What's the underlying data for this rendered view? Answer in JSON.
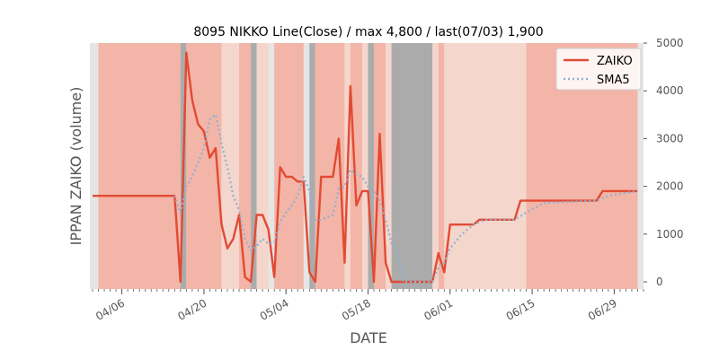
{
  "chart_data": {
    "type": "line",
    "title": "8095 NIKKO Line(Close) / max 4,800 / last(07/03) 1,900",
    "xlabel": "DATE",
    "ylabel": "IPPAN ZAIKO (volume)",
    "ylim": [
      0,
      5000
    ],
    "yticks": [
      0,
      1000,
      2000,
      3000,
      4000,
      5000
    ],
    "ytick_labels": [
      "0",
      "1000",
      "2000",
      "3000",
      "4000",
      "5000"
    ],
    "y_axis_side": "right",
    "xlim": [
      "04/01",
      "07/04"
    ],
    "xtick_labels": [
      "04/06",
      "04/20",
      "05/04",
      "05/18",
      "06/01",
      "06/15",
      "06/29"
    ],
    "xtick_dates": [
      "04/06",
      "04/20",
      "05/04",
      "05/18",
      "06/01",
      "06/15",
      "06/29"
    ],
    "legend_position": "top-right",
    "grid": false,
    "series": [
      {
        "name": "ZAIKO",
        "color": "#e24a33",
        "style": "solid",
        "points": [
          [
            "04/01",
            1800
          ],
          [
            "04/02",
            1800
          ],
          [
            "04/03",
            1800
          ],
          [
            "04/06",
            1800
          ],
          [
            "04/07",
            1800
          ],
          [
            "04/08",
            1800
          ],
          [
            "04/09",
            1800
          ],
          [
            "04/10",
            1800
          ],
          [
            "04/13",
            1800
          ],
          [
            "04/14",
            1800
          ],
          [
            "04/15",
            1800
          ],
          [
            "04/16",
            0
          ],
          [
            "04/17",
            4800
          ],
          [
            "04/18",
            3800
          ],
          [
            "04/19",
            3300
          ],
          [
            "04/20",
            3150
          ],
          [
            "04/21",
            2600
          ],
          [
            "04/22",
            2800
          ],
          [
            "04/23",
            1200
          ],
          [
            "04/24",
            700
          ],
          [
            "04/25",
            900
          ],
          [
            "04/26",
            1400
          ],
          [
            "04/27",
            100
          ],
          [
            "04/28",
            0
          ],
          [
            "04/29",
            1400
          ],
          [
            "04/30",
            1400
          ],
          [
            "05/01",
            1100
          ],
          [
            "05/02",
            100
          ],
          [
            "05/03",
            2400
          ],
          [
            "05/04",
            2200
          ],
          [
            "05/05",
            2200
          ],
          [
            "05/06",
            2100
          ],
          [
            "05/07",
            2100
          ],
          [
            "05/08",
            200
          ],
          [
            "05/09",
            0
          ],
          [
            "05/10",
            2200
          ],
          [
            "05/11",
            2200
          ],
          [
            "05/12",
            2200
          ],
          [
            "05/13",
            3000
          ],
          [
            "05/14",
            400
          ],
          [
            "05/15",
            4100
          ],
          [
            "05/16",
            1600
          ],
          [
            "05/17",
            1900
          ],
          [
            "05/18",
            1900
          ],
          [
            "05/19",
            0
          ],
          [
            "05/20",
            3100
          ],
          [
            "05/21",
            400
          ],
          [
            "05/22",
            0
          ],
          [
            "05/26",
            0
          ],
          [
            "05/27",
            0
          ],
          [
            "05/28",
            0
          ],
          [
            "05/29",
            0
          ],
          [
            "05/30",
            600
          ],
          [
            "05/31",
            200
          ],
          [
            "06/01",
            1200
          ],
          [
            "06/05",
            1200
          ],
          [
            "06/06",
            1300
          ],
          [
            "06/12",
            1300
          ],
          [
            "06/13",
            1700
          ],
          [
            "06/26",
            1700
          ],
          [
            "06/27",
            1900
          ],
          [
            "07/03",
            1900
          ]
        ]
      },
      {
        "name": "SMA5",
        "color": "#8eb1d4",
        "style": "dotted",
        "points": [
          [
            "04/15",
            1800
          ],
          [
            "04/16",
            1440
          ],
          [
            "04/17",
            2000
          ],
          [
            "04/18",
            2200
          ],
          [
            "04/19",
            2500
          ],
          [
            "04/20",
            2800
          ],
          [
            "04/21",
            3400
          ],
          [
            "04/22",
            3500
          ],
          [
            "04/23",
            2900
          ],
          [
            "04/24",
            2400
          ],
          [
            "04/25",
            1800
          ],
          [
            "04/26",
            1500
          ],
          [
            "04/27",
            900
          ],
          [
            "04/28",
            650
          ],
          [
            "04/29",
            750
          ],
          [
            "04/30",
            900
          ],
          [
            "05/01",
            800
          ],
          [
            "05/02",
            820
          ],
          [
            "05/03",
            1250
          ],
          [
            "05/04",
            1450
          ],
          [
            "05/05",
            1600
          ],
          [
            "05/06",
            1800
          ],
          [
            "05/07",
            2200
          ],
          [
            "05/08",
            1900
          ],
          [
            "05/09",
            1300
          ],
          [
            "05/10",
            1300
          ],
          [
            "05/11",
            1350
          ],
          [
            "05/12",
            1400
          ],
          [
            "05/13",
            1950
          ],
          [
            "05/14",
            2000
          ],
          [
            "05/15",
            2350
          ],
          [
            "05/16",
            2250
          ],
          [
            "05/17",
            2200
          ],
          [
            "05/18",
            2000
          ],
          [
            "05/19",
            1900
          ],
          [
            "05/20",
            1700
          ],
          [
            "05/21",
            1300
          ],
          [
            "05/22",
            800
          ],
          [
            "05/23",
            700
          ],
          [
            "05/24",
            0
          ],
          [
            "05/29",
            0
          ],
          [
            "05/30",
            300
          ],
          [
            "05/31",
            400
          ],
          [
            "06/01",
            700
          ],
          [
            "06/03",
            1000
          ],
          [
            "06/05",
            1200
          ],
          [
            "06/07",
            1300
          ],
          [
            "06/12",
            1300
          ],
          [
            "06/14",
            1450
          ],
          [
            "06/17",
            1650
          ],
          [
            "06/26",
            1700
          ],
          [
            "06/28",
            1800
          ],
          [
            "07/03",
            1900
          ]
        ]
      }
    ]
  },
  "background_bands": {
    "color_light": "#f5d6cc",
    "color_mid": "#f3b5a7",
    "color_gray": "#ababab",
    "color_plot": "#e5e5e5",
    "bands": [
      [
        "04/02",
        "04/16",
        "mid"
      ],
      [
        "04/16",
        "04/17",
        "gray"
      ],
      [
        "04/17",
        "04/23",
        "mid"
      ],
      [
        "04/23",
        "04/26",
        "light"
      ],
      [
        "04/26",
        "04/28",
        "mid"
      ],
      [
        "04/28",
        "04/29",
        "gray"
      ],
      [
        "04/29",
        "05/01",
        "light"
      ],
      [
        "05/02",
        "05/07",
        "mid"
      ],
      [
        "05/08",
        "05/09",
        "gray"
      ],
      [
        "05/09",
        "05/14",
        "mid"
      ],
      [
        "05/14",
        "05/15",
        "light"
      ],
      [
        "05/15",
        "05/17",
        "mid"
      ],
      [
        "05/17",
        "05/18",
        "light"
      ],
      [
        "05/18",
        "05/19",
        "gray"
      ],
      [
        "05/19",
        "05/21",
        "mid"
      ],
      [
        "05/21",
        "05/22",
        "light"
      ],
      [
        "05/22",
        "05/29",
        "gray"
      ],
      [
        "05/29",
        "05/30",
        "light"
      ],
      [
        "05/30",
        "05/31",
        "mid"
      ],
      [
        "05/31",
        "06/14",
        "light"
      ],
      [
        "06/14",
        "07/03",
        "mid"
      ]
    ]
  }
}
